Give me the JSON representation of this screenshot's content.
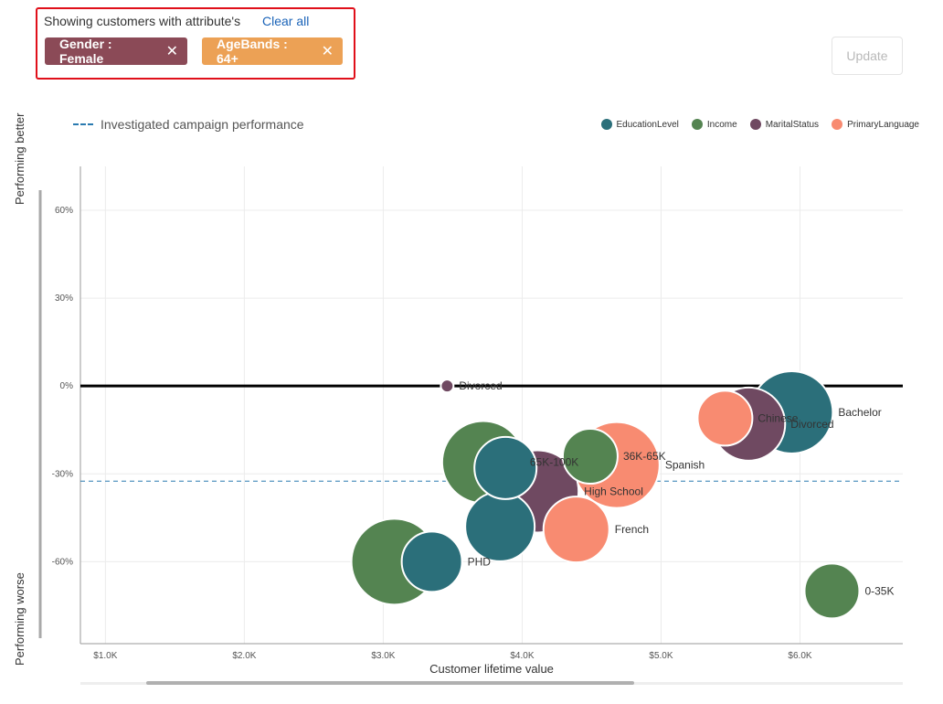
{
  "filters": {
    "heading": "Showing customers with attribute's",
    "clear_all": "Clear all",
    "chips": [
      {
        "label": "Gender : Female",
        "color": "#8b4a57"
      },
      {
        "label": "AgeBands : 64+",
        "color": "#eca155"
      }
    ],
    "close_symbol": "✕"
  },
  "update_button": "Update",
  "reference_legend": "Investigated campaign performance",
  "y_top_label": "Performing better",
  "y_bottom_label": "Performing worse",
  "chart_data": {
    "type": "scatter",
    "title": "",
    "xlabel": "Customer lifetime value",
    "ylabel": "",
    "xlim": [
      820,
      6740
    ],
    "ylim": [
      -88,
      75
    ],
    "x_ticks": [
      1000,
      2000,
      3000,
      4000,
      5000,
      6000
    ],
    "x_tick_labels": [
      "$1.0K",
      "$2.0K",
      "$3.0K",
      "$4.0K",
      "$5.0K",
      "$6.0K"
    ],
    "y_ticks": [
      60,
      30,
      0,
      -30,
      -60
    ],
    "y_tick_labels": [
      "60%",
      "30%",
      "0%",
      "-30%",
      "-60%"
    ],
    "zero_line": 0,
    "reference_line": -32.5,
    "grid": true,
    "legend": "top-right",
    "series": [
      {
        "name": "EducationLevel",
        "color": "#2b6f7a",
        "points": [
          {
            "x": 5940,
            "y": -9,
            "r": 45,
            "label": "Bachelor"
          },
          {
            "x": 3880,
            "y": -28,
            "r": 34,
            "label": ""
          },
          {
            "x": 3840,
            "y": -48,
            "r": 38,
            "label": ""
          },
          {
            "x": 3350,
            "y": -60,
            "r": 33,
            "label": "PHD"
          }
        ]
      },
      {
        "name": "Income",
        "color": "#548451",
        "points": [
          {
            "x": 3720,
            "y": -26,
            "r": 45,
            "label": "65K-100K"
          },
          {
            "x": 3080,
            "y": -60,
            "r": 47,
            "label": ""
          },
          {
            "x": 4490,
            "y": -24,
            "r": 30,
            "label": "36K-65K"
          },
          {
            "x": 6230,
            "y": -70,
            "r": 30,
            "label": "0-35K"
          }
        ]
      },
      {
        "name": "MaritalStatus",
        "color": "#6f4961",
        "points": [
          {
            "x": 3460,
            "y": 0,
            "r": 7,
            "label": "Divorced"
          },
          {
            "x": 5630,
            "y": -13,
            "r": 40,
            "label": "Divorced"
          },
          {
            "x": 4110,
            "y": -36,
            "r": 45,
            "label": "High School"
          }
        ]
      },
      {
        "name": "PrimaryLanguage",
        "color": "#f88b71",
        "points": [
          {
            "x": 4680,
            "y": -27,
            "r": 47,
            "label": "Spanish"
          },
          {
            "x": 5460,
            "y": -11,
            "r": 30,
            "label": "Chinese"
          },
          {
            "x": 4390,
            "y": -49,
            "r": 36,
            "label": "French"
          }
        ]
      }
    ]
  }
}
